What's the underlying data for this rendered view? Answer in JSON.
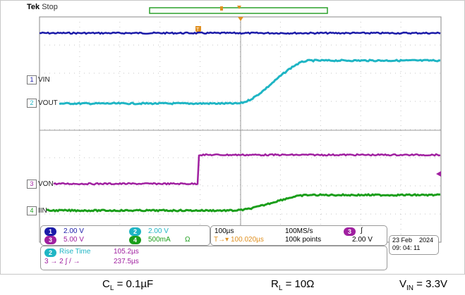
{
  "header": {
    "brand": "Tek",
    "status": "Stop"
  },
  "channels": [
    {
      "num": "1",
      "label": "VIN",
      "color": "#1a1aa8",
      "scale": "2.00 V"
    },
    {
      "num": "2",
      "label": "VOUT",
      "color": "#1fb5c4",
      "scale": "2.00 V"
    },
    {
      "num": "3",
      "label": "VON",
      "color": "#a020a0",
      "scale": "5.00 V"
    },
    {
      "num": "4",
      "label": "IIN",
      "color": "#1b9e1b",
      "scale": "500mA",
      "unit_icon": "Ω"
    }
  ],
  "timebase": {
    "per_div": "100µs",
    "sample_rate": "100MS/s",
    "trigger_position": "100.020µs",
    "record_length": "100k points",
    "trigger_channel": "3",
    "trigger_slope_icon": "rising-edge-icon",
    "trigger_level": "2.00 V"
  },
  "date": {
    "day": "23 Feb",
    "year": "2024",
    "time": "09: 04: 11"
  },
  "measurements": [
    {
      "label": "Rise Time",
      "source": "2",
      "value": "105.2µs"
    },
    {
      "label": "3 → 2 ∫ / →",
      "value": "237.5µs"
    }
  ],
  "caption": {
    "cl": {
      "sym": "C",
      "sub": "L",
      "value": " = 0.1µF"
    },
    "rl": {
      "sym": "R",
      "sub": "L",
      "value": " = 10Ω"
    },
    "vin": {
      "sym": "V",
      "sub": "IN",
      "value": " = 3.3V"
    }
  }
}
